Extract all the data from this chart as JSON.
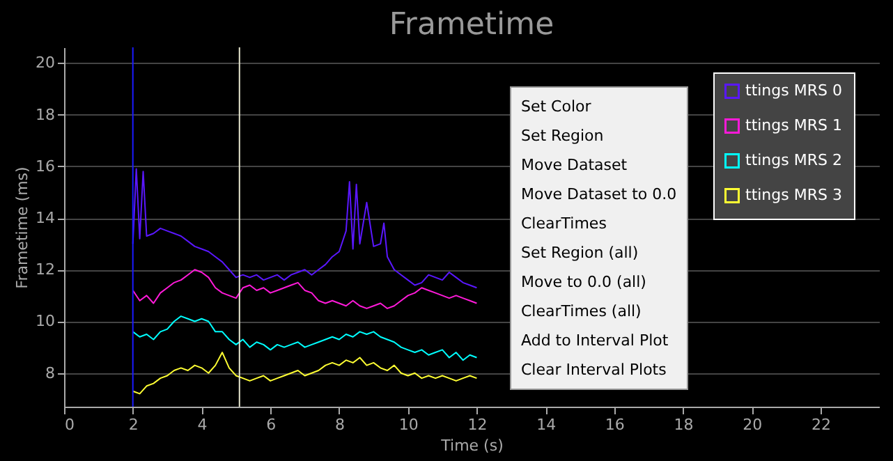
{
  "chart_data": {
    "type": "line",
    "title": "Frametime",
    "xlabel": "Time (s)",
    "ylabel": "Frametime (ms)",
    "xlim": [
      0,
      23.7
    ],
    "xticks": [
      0,
      2,
      4,
      6,
      8,
      10,
      12,
      14,
      16,
      18,
      20,
      22
    ],
    "ylim": [
      6.7,
      20.6
    ],
    "yticks": [
      8,
      10,
      12,
      14,
      16,
      18,
      20
    ],
    "grid": "y",
    "legend": "top right",
    "marker": "none",
    "line_style": "solid",
    "ref_lines": [
      {
        "axis": "x",
        "value": 2,
        "color": "#1a1aff"
      },
      {
        "axis": "x",
        "value": 5.1,
        "color": "#e8e8d0"
      }
    ],
    "annotations": [
      "Set Color",
      "Set Region",
      "Move Dataset",
      "Move Dataset to 0.0",
      "ClearTimes",
      "Set Region (all)",
      "Move to 0.0 (all)",
      "ClearTimes (all)",
      "Add to Interval Plot",
      "Clear Interval Plots"
    ],
    "series": [
      {
        "name": "ttings MRS 0",
        "color": "#5a17ff",
        "x": [
          2.0,
          2.1,
          2.2,
          2.3,
          2.4,
          2.6,
          2.8,
          3.0,
          3.2,
          3.4,
          3.6,
          3.8,
          4.0,
          4.2,
          4.4,
          4.6,
          4.8,
          5.0,
          5.2,
          5.4,
          5.6,
          5.8,
          6.0,
          6.2,
          6.4,
          6.6,
          6.8,
          7.0,
          7.2,
          7.4,
          7.6,
          7.8,
          8.0,
          8.2,
          8.3,
          8.4,
          8.5,
          8.6,
          8.8,
          9.0,
          9.2,
          9.3,
          9.4,
          9.6,
          9.8,
          10.0,
          10.2,
          10.4,
          10.6,
          10.8,
          11.0,
          11.2,
          11.4,
          11.6,
          11.8,
          12.0
        ],
        "values": [
          13.0,
          15.9,
          13.2,
          15.8,
          13.3,
          13.4,
          13.6,
          13.5,
          13.4,
          13.3,
          13.1,
          12.9,
          12.8,
          12.7,
          12.5,
          12.3,
          12.0,
          11.7,
          11.8,
          11.7,
          11.8,
          11.6,
          11.7,
          11.8,
          11.6,
          11.8,
          11.9,
          12.0,
          11.8,
          12.0,
          12.2,
          12.5,
          12.7,
          13.5,
          15.4,
          12.8,
          15.3,
          13.0,
          14.6,
          12.9,
          13.0,
          13.8,
          12.5,
          12.0,
          11.8,
          11.6,
          11.4,
          11.5,
          11.8,
          11.7,
          11.6,
          11.9,
          11.7,
          11.5,
          11.4,
          11.3
        ]
      },
      {
        "name": "ttings MRS 1",
        "color": "#ff1ad9",
        "x": [
          2.0,
          2.2,
          2.4,
          2.6,
          2.8,
          3.0,
          3.2,
          3.4,
          3.6,
          3.8,
          4.0,
          4.2,
          4.4,
          4.6,
          4.8,
          5.0,
          5.2,
          5.4,
          5.6,
          5.8,
          6.0,
          6.2,
          6.4,
          6.6,
          6.8,
          7.0,
          7.2,
          7.4,
          7.6,
          7.8,
          8.0,
          8.2,
          8.4,
          8.6,
          8.8,
          9.0,
          9.2,
          9.4,
          9.6,
          9.8,
          10.0,
          10.2,
          10.4,
          10.6,
          10.8,
          11.0,
          11.2,
          11.4,
          11.6,
          11.8,
          12.0
        ],
        "values": [
          11.2,
          10.8,
          11.0,
          10.7,
          11.1,
          11.3,
          11.5,
          11.6,
          11.8,
          12.0,
          11.9,
          11.7,
          11.3,
          11.1,
          11.0,
          10.9,
          11.3,
          11.4,
          11.2,
          11.3,
          11.1,
          11.2,
          11.3,
          11.4,
          11.5,
          11.2,
          11.1,
          10.8,
          10.7,
          10.8,
          10.7,
          10.6,
          10.8,
          10.6,
          10.5,
          10.6,
          10.7,
          10.5,
          10.6,
          10.8,
          11.0,
          11.1,
          11.3,
          11.2,
          11.1,
          11.0,
          10.9,
          11.0,
          10.9,
          10.8,
          10.7
        ]
      },
      {
        "name": "ttings MRS 2",
        "color": "#00ffff",
        "x": [
          2.0,
          2.2,
          2.4,
          2.6,
          2.8,
          3.0,
          3.2,
          3.4,
          3.6,
          3.8,
          4.0,
          4.2,
          4.4,
          4.6,
          4.8,
          5.0,
          5.2,
          5.4,
          5.6,
          5.8,
          6.0,
          6.2,
          6.4,
          6.6,
          6.8,
          7.0,
          7.2,
          7.4,
          7.6,
          7.8,
          8.0,
          8.2,
          8.4,
          8.6,
          8.8,
          9.0,
          9.2,
          9.4,
          9.6,
          9.8,
          10.0,
          10.2,
          10.4,
          10.6,
          10.8,
          11.0,
          11.2,
          11.4,
          11.6,
          11.8,
          12.0
        ],
        "values": [
          9.6,
          9.4,
          9.5,
          9.3,
          9.6,
          9.7,
          10.0,
          10.2,
          10.1,
          10.0,
          10.1,
          10.0,
          9.6,
          9.6,
          9.3,
          9.1,
          9.3,
          9.0,
          9.2,
          9.1,
          8.9,
          9.1,
          9.0,
          9.1,
          9.2,
          9.0,
          9.1,
          9.2,
          9.3,
          9.4,
          9.3,
          9.5,
          9.4,
          9.6,
          9.5,
          9.6,
          9.4,
          9.3,
          9.2,
          9.0,
          8.9,
          8.8,
          8.9,
          8.7,
          8.8,
          8.9,
          8.6,
          8.8,
          8.5,
          8.7,
          8.6
        ]
      },
      {
        "name": "ttings MRS 3",
        "color": "#ffff33",
        "x": [
          2.0,
          2.2,
          2.4,
          2.6,
          2.8,
          3.0,
          3.2,
          3.4,
          3.6,
          3.8,
          4.0,
          4.2,
          4.4,
          4.6,
          4.8,
          5.0,
          5.2,
          5.4,
          5.6,
          5.8,
          6.0,
          6.2,
          6.4,
          6.6,
          6.8,
          7.0,
          7.2,
          7.4,
          7.6,
          7.8,
          8.0,
          8.2,
          8.4,
          8.6,
          8.8,
          9.0,
          9.2,
          9.4,
          9.6,
          9.8,
          10.0,
          10.2,
          10.4,
          10.6,
          10.8,
          11.0,
          11.2,
          11.4,
          11.6,
          11.8,
          12.0
        ],
        "values": [
          7.3,
          7.2,
          7.5,
          7.6,
          7.8,
          7.9,
          8.1,
          8.2,
          8.1,
          8.3,
          8.2,
          8.0,
          8.3,
          8.8,
          8.2,
          7.9,
          7.8,
          7.7,
          7.8,
          7.9,
          7.7,
          7.8,
          7.9,
          8.0,
          8.1,
          7.9,
          8.0,
          8.1,
          8.3,
          8.4,
          8.3,
          8.5,
          8.4,
          8.6,
          8.3,
          8.4,
          8.2,
          8.1,
          8.3,
          8.0,
          7.9,
          8.0,
          7.8,
          7.9,
          7.8,
          7.9,
          7.8,
          7.7,
          7.8,
          7.9,
          7.8
        ]
      }
    ]
  }
}
